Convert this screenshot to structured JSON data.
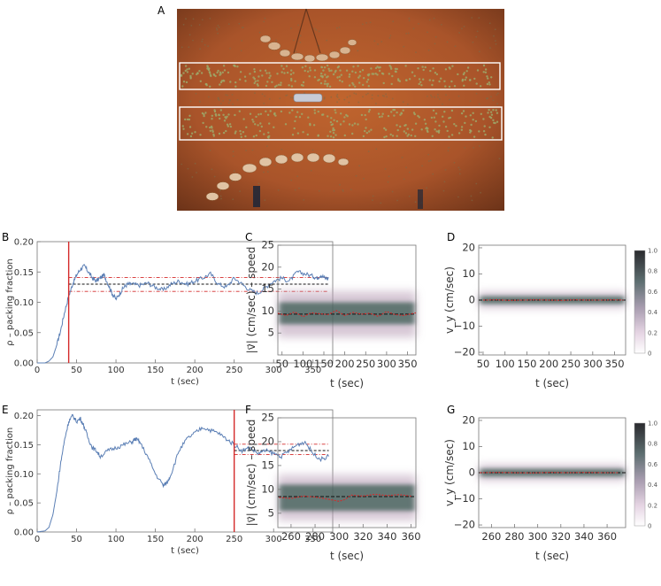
{
  "colors": {
    "trace": "#5b7fb5",
    "red": "#d42a2a",
    "dashed": "#111111",
    "heat_core": "#3a5a52",
    "heat_halo": "#b59ab3",
    "soil": "#b05a2a"
  },
  "panels": {
    "A": {
      "label": "A"
    },
    "B": {
      "label": "B"
    },
    "C": {
      "label": "C"
    },
    "D": {
      "label": "D"
    },
    "E": {
      "label": "E"
    },
    "F": {
      "label": "F"
    },
    "G": {
      "label": "G"
    }
  },
  "colorbar_ticks": [
    "1.0",
    "0.8",
    "0.6",
    "0.4",
    "0.2",
    "0"
  ],
  "chart_data": [
    {
      "id": "B",
      "type": "line",
      "xlabel": "t (sec)",
      "ylabel": "ρ – packing fraction",
      "xlim": [
        0,
        375
      ],
      "ylim": [
        0,
        0.2
      ],
      "xticks": [
        0,
        50,
        100,
        150,
        200,
        250,
        300,
        350
      ],
      "yticks": [
        0.0,
        0.05,
        0.1,
        0.15,
        0.2
      ],
      "ytick_labels": [
        "0.00",
        "0.05",
        "0.10",
        "0.15",
        "0.20"
      ],
      "vline": 40,
      "mean": 0.13,
      "band": [
        0.118,
        0.141
      ],
      "band_xrange": [
        40,
        370
      ],
      "series": [
        {
          "x": [
            0,
            10,
            15,
            20,
            25,
            30,
            35,
            40,
            45,
            50,
            55,
            60,
            65,
            70,
            75,
            80,
            85,
            90,
            95,
            100,
            105,
            110,
            115,
            120,
            130,
            140,
            150,
            160,
            170,
            180,
            190,
            200,
            210,
            220,
            230,
            240,
            250,
            260,
            270,
            280,
            290,
            300,
            310,
            320,
            330,
            340,
            350,
            355,
            360,
            365,
            370
          ],
          "values": [
            0,
            0,
            0.003,
            0.01,
            0.03,
            0.055,
            0.085,
            0.11,
            0.13,
            0.145,
            0.155,
            0.16,
            0.15,
            0.14,
            0.135,
            0.14,
            0.145,
            0.13,
            0.115,
            0.105,
            0.115,
            0.125,
            0.13,
            0.13,
            0.128,
            0.132,
            0.125,
            0.12,
            0.13,
            0.135,
            0.13,
            0.135,
            0.14,
            0.147,
            0.13,
            0.125,
            0.14,
            0.13,
            0.12,
            0.115,
            0.125,
            0.135,
            0.14,
            0.135,
            0.15,
            0.147,
            0.143,
            0.14,
            0.145,
            0.14,
            0.14
          ]
        }
      ]
    },
    {
      "id": "C",
      "type": "heatmap",
      "xlabel": "t (sec)",
      "ylabel": "|v⃗| (cm/sec) – speed",
      "xlim": [
        40,
        370
      ],
      "ylim": [
        0,
        25
      ],
      "xticks": [
        50,
        100,
        150,
        200,
        250,
        300,
        350
      ],
      "yticks": [
        5,
        10,
        15,
        20,
        25
      ],
      "ytick_labels": [
        "5",
        "10",
        "15",
        "20",
        "25"
      ],
      "mean": 9.3,
      "core": [
        7,
        12
      ],
      "halo": [
        4,
        14.5
      ],
      "series": [
        {
          "x": [
            40,
            60,
            80,
            100,
            120,
            140,
            160,
            180,
            200,
            220,
            240,
            260,
            280,
            300,
            320,
            340,
            360,
            370
          ],
          "values": [
            9.5,
            9.0,
            9.8,
            8.7,
            9.6,
            9.4,
            9.2,
            10.1,
            9.0,
            9.7,
            9.3,
            9.5,
            8.8,
            9.9,
            9.2,
            9.0,
            9.4,
            9.6
          ]
        }
      ]
    },
    {
      "id": "D",
      "type": "heatmap",
      "xlabel": "t (sec)",
      "ylabel": "v_y (cm/sec)",
      "xlim": [
        40,
        375
      ],
      "ylim": [
        -21,
        21
      ],
      "xticks": [
        50,
        100,
        150,
        200,
        250,
        300,
        350
      ],
      "yticks": [
        -20,
        -10,
        0,
        10,
        20
      ],
      "ytick_labels": [
        "−20",
        "−10",
        "0",
        "10",
        "20"
      ],
      "mean": 0,
      "core": [
        -1.5,
        1.5
      ],
      "halo": [
        -3,
        3
      ],
      "series": [
        {
          "x": [
            50,
            80,
            110,
            140,
            170,
            200,
            230,
            260,
            290,
            320,
            350,
            370
          ],
          "values": [
            0,
            0.1,
            -0.1,
            0,
            0.1,
            0,
            -0.1,
            0.1,
            0,
            0,
            0.1,
            0
          ]
        }
      ]
    },
    {
      "id": "E",
      "type": "line",
      "xlabel": "t (sec)",
      "ylabel": "ρ – packing fraction",
      "xlim": [
        0,
        375
      ],
      "ylim": [
        0,
        0.21
      ],
      "xticks": [
        0,
        50,
        100,
        150,
        200,
        250,
        300,
        350
      ],
      "yticks": [
        0.0,
        0.05,
        0.1,
        0.15,
        0.2
      ],
      "ytick_labels": [
        "0.00",
        "0.05",
        "0.10",
        "0.15",
        "0.20"
      ],
      "vline": 250,
      "mean": 0.14,
      "band": [
        0.133,
        0.151
      ],
      "band_xrange": [
        250,
        370
      ],
      "series": [
        {
          "x": [
            0,
            10,
            15,
            20,
            25,
            30,
            35,
            40,
            45,
            50,
            55,
            60,
            65,
            70,
            75,
            80,
            90,
            100,
            110,
            120,
            125,
            130,
            140,
            150,
            160,
            165,
            170,
            180,
            190,
            200,
            210,
            220,
            230,
            240,
            250,
            260,
            270,
            280,
            290,
            300,
            310,
            320,
            330,
            340,
            350,
            360,
            370
          ],
          "values": [
            0,
            0.002,
            0.008,
            0.03,
            0.07,
            0.12,
            0.16,
            0.19,
            0.2,
            0.19,
            0.195,
            0.18,
            0.16,
            0.145,
            0.14,
            0.13,
            0.14,
            0.145,
            0.15,
            0.155,
            0.16,
            0.155,
            0.13,
            0.1,
            0.08,
            0.085,
            0.1,
            0.14,
            0.16,
            0.17,
            0.18,
            0.175,
            0.17,
            0.16,
            0.15,
            0.14,
            0.145,
            0.135,
            0.14,
            0.135,
            0.13,
            0.14,
            0.15,
            0.155,
            0.135,
            0.125,
            0.13
          ]
        }
      ]
    },
    {
      "id": "F",
      "type": "heatmap",
      "xlabel": "t (sec)",
      "ylabel": "|v⃗| (cm/sec) – speed",
      "xlim": [
        249,
        364
      ],
      "ylim": [
        2,
        25
      ],
      "xticks": [
        260,
        280,
        300,
        320,
        340,
        360
      ],
      "yticks": [
        5,
        10,
        15,
        20,
        25
      ],
      "ytick_labels": [
        "5",
        "10",
        "15",
        "20",
        "25"
      ],
      "mean": 8.5,
      "core": [
        5.5,
        11
      ],
      "halo": [
        3.5,
        13
      ],
      "series": [
        {
          "x": [
            250,
            260,
            270,
            280,
            290,
            300,
            305,
            310,
            320,
            330,
            340,
            350,
            360
          ],
          "values": [
            8.3,
            8.1,
            8.6,
            8.4,
            8.0,
            7.5,
            7.9,
            8.8,
            8.6,
            9.0,
            8.7,
            8.9,
            8.6
          ]
        }
      ]
    },
    {
      "id": "G",
      "type": "heatmap",
      "xlabel": "t (sec)",
      "ylabel": "v_y (cm/sec)",
      "xlim": [
        249,
        376
      ],
      "ylim": [
        -21,
        21
      ],
      "xticks": [
        260,
        280,
        300,
        320,
        340,
        360
      ],
      "yticks": [
        -20,
        -10,
        0,
        10,
        20
      ],
      "ytick_labels": [
        "−20",
        "−10",
        "0",
        "10",
        "20"
      ],
      "mean": 0,
      "core": [
        -1.5,
        1.5
      ],
      "halo": [
        -3,
        3
      ],
      "series": [
        {
          "x": [
            250,
            265,
            280,
            295,
            310,
            325,
            340,
            355,
            370
          ],
          "values": [
            0,
            0.1,
            0,
            -0.1,
            0.1,
            0,
            0.1,
            0,
            0
          ]
        }
      ]
    }
  ]
}
